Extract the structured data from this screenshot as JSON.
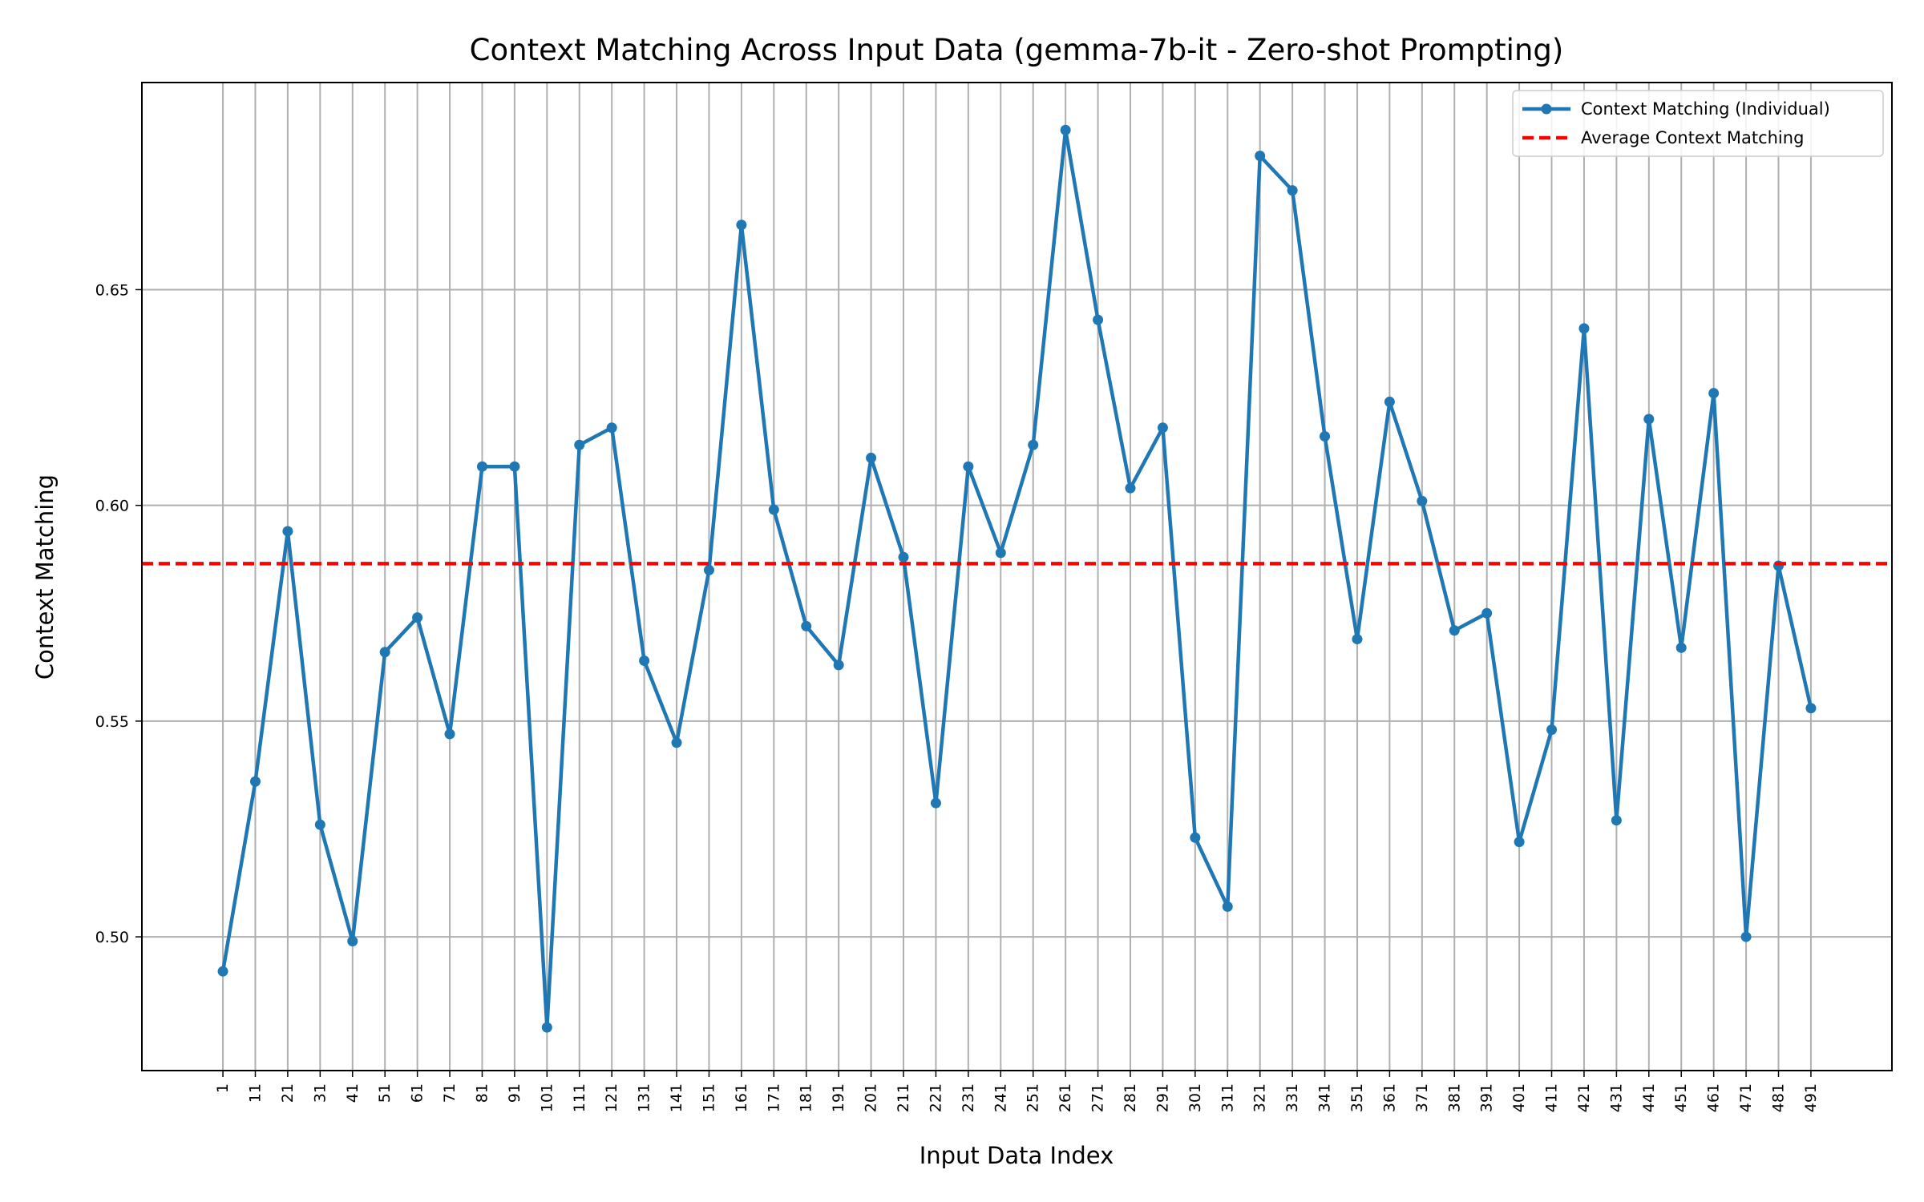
{
  "chart_data": {
    "type": "line",
    "title": "Context Matching Across Input Data (gemma-7b-it - Zero-shot Prompting)",
    "xlabel": "Input Data Index",
    "ylabel": "Context Matching",
    "x": [
      1,
      11,
      21,
      31,
      41,
      51,
      61,
      71,
      81,
      91,
      101,
      111,
      121,
      131,
      141,
      151,
      161,
      171,
      181,
      191,
      201,
      211,
      221,
      231,
      241,
      251,
      261,
      271,
      281,
      291,
      301,
      311,
      321,
      331,
      341,
      351,
      361,
      371,
      381,
      391,
      401,
      411,
      421,
      431,
      441,
      451,
      461,
      471,
      481,
      491
    ],
    "xticks": [
      "1",
      "11",
      "21",
      "31",
      "41",
      "51",
      "61",
      "71",
      "81",
      "91",
      "101",
      "111",
      "121",
      "131",
      "141",
      "151",
      "161",
      "171",
      "181",
      "191",
      "201",
      "211",
      "221",
      "231",
      "241",
      "251",
      "261",
      "271",
      "281",
      "291",
      "301",
      "311",
      "321",
      "331",
      "341",
      "351",
      "361",
      "371",
      "381",
      "391",
      "401",
      "411",
      "421",
      "431",
      "441",
      "451",
      "461",
      "471",
      "481",
      "491"
    ],
    "yticks": [
      "0.50",
      "0.55",
      "0.60",
      "0.65"
    ],
    "ytick_values": [
      0.5,
      0.55,
      0.6,
      0.65
    ],
    "xlim": [
      -24,
      516
    ],
    "ylim": [
      0.469,
      0.698
    ],
    "grid": true,
    "legend_position": "top-right",
    "series": [
      {
        "name": "Context Matching (Individual)",
        "color": "#1f77b4",
        "style": "solid-with-markers",
        "values": [
          0.492,
          0.536,
          0.594,
          0.526,
          0.499,
          0.566,
          0.574,
          0.547,
          0.609,
          0.609,
          0.479,
          0.614,
          0.618,
          0.564,
          0.545,
          0.585,
          0.665,
          0.599,
          0.572,
          0.563,
          0.611,
          0.588,
          0.531,
          0.609,
          0.589,
          0.614,
          0.687,
          0.643,
          0.604,
          0.618,
          0.523,
          0.507,
          0.681,
          0.673,
          0.616,
          0.569,
          0.624,
          0.601,
          0.571,
          0.575,
          0.522,
          0.548,
          0.641,
          0.527,
          0.62,
          0.567,
          0.626,
          0.5,
          0.586,
          0.553
        ]
      },
      {
        "name": "Average Context Matching",
        "color": "#ff0000",
        "style": "dashed",
        "value": 0.5865
      }
    ]
  }
}
